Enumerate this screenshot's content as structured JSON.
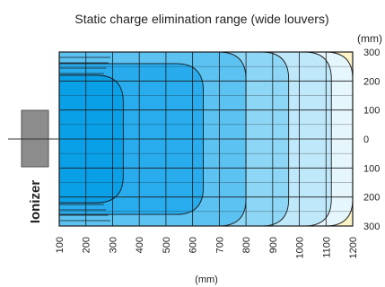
{
  "chart_data": {
    "type": "heatmap",
    "title": "Static charge elimination range (wide louvers)",
    "xlabel": "(mm)",
    "ylabel": "(mm)",
    "device_label": "Ionizer",
    "x_ticks": [
      "100",
      "200",
      "300",
      "400",
      "500",
      "600",
      "700",
      "800",
      "900",
      "1000",
      "1100",
      "1200"
    ],
    "y_ticks": [
      "300",
      "200",
      "100",
      "0",
      "100",
      "200",
      "300"
    ],
    "xlim": [
      100,
      1200
    ],
    "ylim": [
      -300,
      300
    ],
    "grid": true,
    "zones": [
      {
        "x_edge": 340,
        "y_edge": 220,
        "color": "#0aa0e8"
      },
      {
        "x_edge": 640,
        "y_edge": 260,
        "color": "#28aced"
      },
      {
        "x_edge": 800,
        "y_edge": 300,
        "color": "#5bc2f2"
      },
      {
        "x_edge": 960,
        "y_edge": 300,
        "color": "#8ed6f6"
      },
      {
        "x_edge": 1120,
        "y_edge": 300,
        "color": "#bfe8fa"
      },
      {
        "x_edge": 1200,
        "y_edge": 300,
        "color": "#e6f6fd"
      }
    ],
    "background_color": "#fdf4c8",
    "line_color": "#1a1a1a",
    "ionizer_color": "#8c8c8c"
  }
}
